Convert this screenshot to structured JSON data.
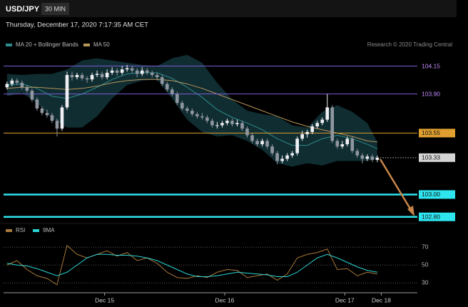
{
  "header": {
    "symbol": "USD/JPY",
    "interval": "30 MIN",
    "datetime": "Thursday, December 17, 2020 7:17:35 AM CET",
    "credit": "Research © 2020 Trading Central"
  },
  "chart_data": [
    {
      "type": "candlestick",
      "up_color": "#f0f0f4",
      "down_color": "#9096a0",
      "xlim": [
        -1.4,
        82
      ],
      "ylim": [
        102.76,
        104.23
      ],
      "ohlc": [
        [
          103.96,
          104.01,
          103.94,
          103.99
        ],
        [
          103.99,
          104.04,
          103.97,
          104.02
        ],
        [
          104.02,
          104.04,
          103.98,
          104.0
        ],
        [
          104.0,
          104.02,
          103.94,
          103.96
        ],
        [
          103.96,
          103.98,
          103.91,
          103.93
        ],
        [
          103.93,
          103.95,
          103.83,
          103.85
        ],
        [
          103.85,
          103.87,
          103.75,
          103.77
        ],
        [
          103.77,
          103.79,
          103.71,
          103.73
        ],
        [
          103.73,
          103.76,
          103.69,
          103.71
        ],
        [
          103.71,
          103.73,
          103.64,
          103.66
        ],
        [
          103.66,
          103.68,
          103.52,
          103.59
        ],
        [
          103.59,
          103.8,
          103.57,
          103.78
        ],
        [
          103.78,
          104.1,
          103.76,
          104.07
        ],
        [
          104.07,
          104.1,
          104.02,
          104.05
        ],
        [
          104.05,
          104.09,
          104.03,
          104.07
        ],
        [
          104.07,
          104.09,
          104.02,
          104.04
        ],
        [
          104.04,
          104.06,
          104.0,
          104.03
        ],
        [
          104.03,
          104.09,
          104.01,
          104.07
        ],
        [
          104.07,
          104.11,
          104.05,
          104.08
        ],
        [
          104.08,
          104.1,
          104.03,
          104.05
        ],
        [
          104.05,
          104.12,
          104.03,
          104.09
        ],
        [
          104.09,
          104.14,
          104.07,
          104.11
        ],
        [
          104.11,
          104.13,
          104.06,
          104.09
        ],
        [
          104.09,
          104.15,
          104.07,
          104.12
        ],
        [
          104.12,
          104.16,
          104.1,
          104.13
        ],
        [
          104.13,
          104.15,
          104.09,
          104.11
        ],
        [
          104.11,
          104.13,
          104.05,
          104.08
        ],
        [
          104.08,
          104.14,
          104.06,
          104.11
        ],
        [
          104.11,
          104.13,
          104.07,
          104.09
        ],
        [
          104.09,
          104.11,
          104.05,
          104.07
        ],
        [
          104.07,
          104.09,
          104.02,
          104.05
        ],
        [
          104.05,
          104.07,
          103.97,
          103.99
        ],
        [
          103.99,
          104.01,
          103.92,
          103.94
        ],
        [
          103.94,
          103.96,
          103.88,
          103.9
        ],
        [
          103.9,
          103.92,
          103.8,
          103.82
        ],
        [
          103.82,
          103.84,
          103.75,
          103.77
        ],
        [
          103.77,
          103.79,
          103.73,
          103.75
        ],
        [
          103.75,
          103.77,
          103.7,
          103.72
        ],
        [
          103.72,
          103.74,
          103.68,
          103.7
        ],
        [
          103.7,
          103.73,
          103.67,
          103.69
        ],
        [
          103.69,
          103.71,
          103.64,
          103.66
        ],
        [
          103.66,
          103.68,
          103.6,
          103.62
        ],
        [
          103.62,
          103.65,
          103.59,
          103.62
        ],
        [
          103.62,
          103.66,
          103.6,
          103.64
        ],
        [
          103.64,
          103.68,
          103.62,
          103.66
        ],
        [
          103.66,
          103.68,
          103.61,
          103.63
        ],
        [
          103.63,
          103.67,
          103.61,
          103.64
        ],
        [
          103.64,
          103.66,
          103.57,
          103.59
        ],
        [
          103.59,
          103.61,
          103.51,
          103.53
        ],
        [
          103.53,
          103.55,
          103.46,
          103.48
        ],
        [
          103.48,
          103.5,
          103.43,
          103.45
        ],
        [
          103.45,
          103.5,
          103.43,
          103.48
        ],
        [
          103.48,
          103.5,
          103.41,
          103.43
        ],
        [
          103.43,
          103.45,
          103.35,
          103.37
        ],
        [
          103.37,
          103.39,
          103.27,
          103.3
        ],
        [
          103.3,
          103.35,
          103.28,
          103.32
        ],
        [
          103.32,
          103.37,
          103.3,
          103.35
        ],
        [
          103.35,
          103.39,
          103.33,
          103.37
        ],
        [
          103.37,
          103.52,
          103.35,
          103.5
        ],
        [
          103.5,
          103.57,
          103.48,
          103.54
        ],
        [
          103.54,
          103.58,
          103.51,
          103.56
        ],
        [
          103.56,
          103.63,
          103.54,
          103.61
        ],
        [
          103.61,
          103.66,
          103.59,
          103.64
        ],
        [
          103.64,
          103.69,
          103.62,
          103.67
        ],
        [
          103.67,
          103.9,
          103.65,
          103.78
        ],
        [
          103.78,
          103.8,
          103.46,
          103.48
        ],
        [
          103.48,
          103.5,
          103.41,
          103.43
        ],
        [
          103.43,
          103.48,
          103.41,
          103.45
        ],
        [
          103.45,
          103.52,
          103.43,
          103.5
        ],
        [
          103.5,
          103.52,
          103.37,
          103.39
        ],
        [
          103.39,
          103.41,
          103.33,
          103.35
        ],
        [
          103.35,
          103.37,
          103.28,
          103.32
        ],
        [
          103.32,
          103.36,
          103.3,
          103.34
        ],
        [
          103.34,
          103.36,
          103.29,
          103.31
        ],
        [
          103.31,
          103.35,
          103.29,
          103.33
        ]
      ],
      "band": {
        "name": "MA 20 + Bollinger Bands",
        "color": "#2e8c8c",
        "fill": "#123237",
        "x": [
          0,
          3,
          6,
          9,
          12,
          15,
          18,
          21,
          24,
          27,
          30,
          33,
          36,
          39,
          42,
          45,
          48,
          51,
          54,
          57,
          60,
          63,
          66,
          69,
          72,
          74
        ],
        "middle": [
          103.98,
          103.99,
          103.95,
          103.88,
          103.86,
          103.9,
          103.96,
          104.03,
          104.08,
          104.09,
          104.09,
          104.04,
          103.96,
          103.87,
          103.76,
          103.69,
          103.64,
          103.58,
          103.5,
          103.44,
          103.44,
          103.5,
          103.53,
          103.5,
          103.45,
          103.41
        ],
        "upper": [
          104.08,
          104.07,
          104.08,
          104.08,
          104.12,
          104.2,
          104.22,
          104.2,
          104.18,
          104.16,
          104.15,
          104.22,
          104.25,
          104.18,
          104.0,
          103.85,
          103.75,
          103.72,
          103.7,
          103.62,
          103.6,
          103.74,
          103.8,
          103.74,
          103.64,
          103.47
        ],
        "lower": [
          103.88,
          103.91,
          103.82,
          103.68,
          103.6,
          103.6,
          103.7,
          103.86,
          103.98,
          104.02,
          104.03,
          103.86,
          103.67,
          103.56,
          103.52,
          103.53,
          103.48,
          103.4,
          103.28,
          103.25,
          103.28,
          103.26,
          103.3,
          103.3,
          103.3,
          103.32
        ]
      },
      "ma50": {
        "name": "MA 50",
        "color": "#b8955a",
        "x": [
          0,
          3,
          6,
          9,
          12,
          15,
          18,
          21,
          24,
          27,
          30,
          33,
          36,
          39,
          42,
          45,
          48,
          51,
          54,
          57,
          60,
          63,
          66,
          69,
          72,
          74
        ],
        "values": [
          103.95,
          103.96,
          103.96,
          103.95,
          103.94,
          103.95,
          103.97,
          104.0,
          104.02,
          104.03,
          104.03,
          104.02,
          103.99,
          103.95,
          103.9,
          103.85,
          103.8,
          103.75,
          103.7,
          103.65,
          103.61,
          103.58,
          103.55,
          103.52,
          103.48,
          103.47
        ]
      },
      "levels": [
        {
          "value": 104.15,
          "color": "#7c5cd6",
          "line": "thin",
          "box": false
        },
        {
          "value": 103.9,
          "label": "103.90",
          "color": "#7c5cd6",
          "line": "thin",
          "box": false
        },
        {
          "value": 103.55,
          "color": "#e0a030",
          "line": "thin",
          "box": true
        },
        {
          "value": 103.33,
          "color": "#d4d4d4",
          "line": "dotted",
          "box": true
        },
        {
          "value": 103,
          "label": "103.00",
          "color": "#2ee4ee",
          "line": "thick",
          "box": true
        },
        {
          "value": 102.8,
          "label": "102.80",
          "color": "#2ee4ee",
          "line": "thick",
          "box": true
        }
      ]
    },
    {
      "type": "line",
      "xlim": [
        -1.4,
        82
      ],
      "ylim": [
        19,
        83
      ],
      "yticks": [
        30,
        50,
        70
      ],
      "x": [
        0,
        2,
        4,
        6,
        8,
        10,
        12,
        14,
        16,
        18,
        20,
        22,
        24,
        26,
        28,
        30,
        32,
        34,
        36,
        38,
        40,
        42,
        44,
        46,
        48,
        50,
        52,
        54,
        56,
        58,
        60,
        62,
        64,
        66,
        68,
        70,
        72,
        74
      ],
      "xticks": [
        {
          "value": 19.5,
          "label": "Dec 15"
        },
        {
          "value": 43.5,
          "label": "Dec 16"
        },
        {
          "value": 67.5,
          "label": "Dec 17"
        },
        {
          "value": 74.8,
          "label": "Dec 18"
        }
      ],
      "series": [
        {
          "name": "RSI",
          "color": "#a8793a",
          "values": [
            50,
            55,
            45,
            38,
            35,
            28,
            72,
            62,
            58,
            62,
            66,
            60,
            64,
            55,
            58,
            52,
            42,
            36,
            35,
            38,
            36,
            42,
            45,
            44,
            36,
            38,
            40,
            33,
            40,
            58,
            62,
            64,
            68,
            45,
            46,
            38,
            42,
            40
          ]
        },
        {
          "name": "9MA",
          "color": "#2ad4d4",
          "values": [
            52,
            50,
            49,
            46,
            42,
            38,
            42,
            50,
            58,
            62,
            62,
            61,
            61,
            60,
            58,
            55,
            50,
            45,
            40,
            37,
            37,
            38,
            40,
            42,
            41,
            40,
            39,
            37,
            37,
            42,
            50,
            58,
            62,
            58,
            53,
            48,
            44,
            42
          ]
        }
      ]
    }
  ]
}
